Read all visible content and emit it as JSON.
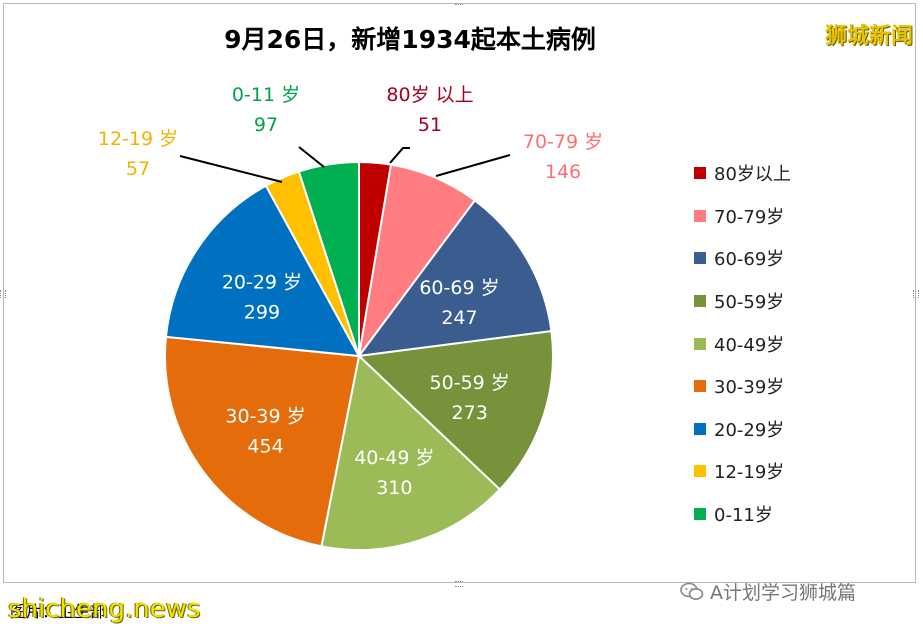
{
  "header": {
    "title": "9月26日，新增1934起本土病例",
    "brand": "狮城新闻"
  },
  "footer": {
    "source_text": "图片：卫生部",
    "watermark": "shicheng.news",
    "wechat_label": "A计划学习狮城篇"
  },
  "chart_data": {
    "type": "pie",
    "title": "9月26日，新增1934起本土病例",
    "start": "12 o'clock",
    "direction": "clockwise",
    "legend_position": "right",
    "slices": [
      {
        "label": "80岁以上",
        "value": 51,
        "color": "#c00000",
        "label_placement": "outside",
        "text_color": "#a50021",
        "callout_label": "80岁 以上"
      },
      {
        "label": "70-79岁",
        "value": 146,
        "color": "#ff7c80",
        "label_placement": "outside",
        "text_color": "#ff6e73",
        "callout_label": "70-79 岁"
      },
      {
        "label": "60-69岁",
        "value": 247,
        "color": "#3b5c8e",
        "label_placement": "inside",
        "text_color": "#ffffff",
        "callout_label": "60-69 岁"
      },
      {
        "label": "50-59岁",
        "value": 273,
        "color": "#76933c",
        "label_placement": "inside",
        "text_color": "#ffffff",
        "callout_label": "50-59 岁"
      },
      {
        "label": "40-49岁",
        "value": 310,
        "color": "#9bbb59",
        "label_placement": "inside",
        "text_color": "#ffffff",
        "callout_label": "40-49 岁"
      },
      {
        "label": "30-39岁",
        "value": 454,
        "color": "#e46c0a",
        "label_placement": "inside",
        "text_color": "#ffffff",
        "callout_label": "30-39 岁"
      },
      {
        "label": "20-29岁",
        "value": 299,
        "color": "#0070c0",
        "label_placement": "inside",
        "text_color": "#ffffff",
        "callout_label": "20-29 岁"
      },
      {
        "label": "12-19岁",
        "value": 57,
        "color": "#ffc000",
        "label_placement": "outside",
        "text_color": "#f0b400",
        "callout_label": "12-19 岁"
      },
      {
        "label": "0-11岁",
        "value": 97,
        "color": "#00b050",
        "label_placement": "outside",
        "text_color": "#00a14b",
        "callout_label": "0-11 岁"
      }
    ]
  }
}
